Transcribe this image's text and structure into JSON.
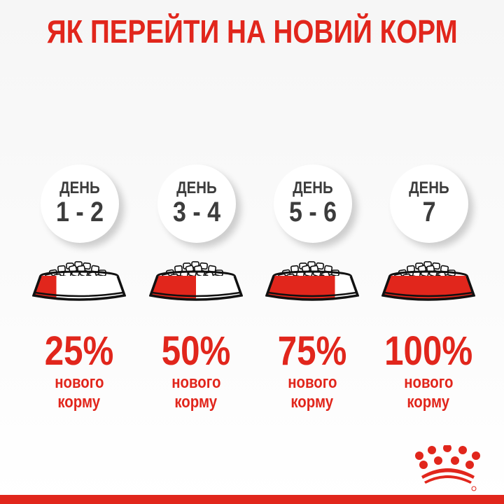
{
  "title": "ЯК ПЕРЕЙТИ НА НОВИЙ КОРМ",
  "colors": {
    "accent": "#e1261c",
    "text_dark": "#3c3c3c"
  },
  "steps": [
    {
      "day_label": "ДЕНЬ",
      "days": "1 - 2",
      "percent_label": "25%",
      "percent": 25,
      "line1": "нового",
      "line2": "корму"
    },
    {
      "day_label": "ДЕНЬ",
      "days": "3 - 4",
      "percent_label": "50%",
      "percent": 50,
      "line1": "нового",
      "line2": "корму"
    },
    {
      "day_label": "ДЕНЬ",
      "days": "5 - 6",
      "percent_label": "75%",
      "percent": 75,
      "line1": "нового",
      "line2": "корму"
    },
    {
      "day_label": "ДЕНЬ",
      "days": "7",
      "percent_label": "100%",
      "percent": 100,
      "line1": "нового",
      "line2": "корму"
    }
  ],
  "logo": {
    "name": "royal-canin-crown-logo",
    "mark": "®"
  }
}
